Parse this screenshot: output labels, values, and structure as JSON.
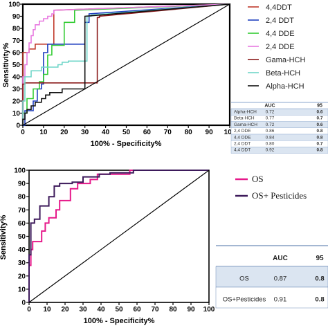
{
  "chart_data": [
    {
      "type": "line",
      "title": "",
      "xlabel": "100% - Specificity%",
      "ylabel": "Sensitivity%",
      "xlim": [
        0,
        100
      ],
      "ylim": [
        0,
        100
      ],
      "x_ticks": [
        0,
        10,
        20,
        30,
        40,
        50,
        60,
        70,
        80,
        90,
        100
      ],
      "y_ticks": [
        0,
        10,
        20,
        30,
        40,
        50,
        60,
        70,
        80,
        90,
        100
      ],
      "grid": false,
      "legend_position": "right",
      "series": [
        {
          "name": "4,4DDT",
          "color": "#c0392b",
          "points": [
            [
              0,
              0
            ],
            [
              0,
              60
            ],
            [
              3,
              60
            ],
            [
              3,
              63
            ],
            [
              6,
              63
            ],
            [
              6,
              67
            ],
            [
              15,
              67
            ],
            [
              15,
              95
            ],
            [
              100,
              100
            ]
          ]
        },
        {
          "name": "2,4 DDT",
          "color": "#1f3fbf",
          "points": [
            [
              0,
              0
            ],
            [
              1,
              0
            ],
            [
              1,
              12
            ],
            [
              5,
              12
            ],
            [
              5,
              20
            ],
            [
              7,
              20
            ],
            [
              7,
              30
            ],
            [
              9,
              30
            ],
            [
              9,
              34
            ],
            [
              10,
              34
            ],
            [
              10,
              60
            ],
            [
              12,
              60
            ],
            [
              12,
              67
            ],
            [
              30,
              67
            ],
            [
              30,
              85
            ],
            [
              32,
              85
            ],
            [
              32,
              92
            ],
            [
              100,
              100
            ]
          ]
        },
        {
          "name": "4,4 DDE",
          "color": "#33cc33",
          "points": [
            [
              0,
              0
            ],
            [
              0,
              10
            ],
            [
              2,
              10
            ],
            [
              2,
              22
            ],
            [
              5,
              22
            ],
            [
              5,
              30
            ],
            [
              8,
              30
            ],
            [
              8,
              36
            ],
            [
              10,
              36
            ],
            [
              10,
              42
            ],
            [
              12,
              42
            ],
            [
              12,
              58
            ],
            [
              14,
              58
            ],
            [
              14,
              66
            ],
            [
              20,
              66
            ],
            [
              20,
              85
            ],
            [
              25,
              85
            ],
            [
              25,
              95
            ],
            [
              100,
              100
            ]
          ]
        },
        {
          "name": "2,4 DDE",
          "color": "#e879e0",
          "points": [
            [
              0,
              0
            ],
            [
              0,
              40
            ],
            [
              1,
              40
            ],
            [
              1,
              50
            ],
            [
              2,
              50
            ],
            [
              2,
              60
            ],
            [
              3,
              60
            ],
            [
              3,
              68
            ],
            [
              4,
              68
            ],
            [
              4,
              74
            ],
            [
              5,
              74
            ],
            [
              5,
              79
            ],
            [
              6,
              79
            ],
            [
              6,
              83
            ],
            [
              8,
              83
            ],
            [
              8,
              86
            ],
            [
              10,
              86
            ],
            [
              10,
              88
            ],
            [
              12,
              88
            ],
            [
              12,
              90
            ],
            [
              14,
              90
            ],
            [
              14,
              92
            ],
            [
              15,
              92
            ],
            [
              15,
              95
            ],
            [
              100,
              100
            ]
          ]
        },
        {
          "name": "Gama-HCH",
          "color": "#8b1a1a",
          "points": [
            [
              0,
              0
            ],
            [
              0,
              34
            ],
            [
              1,
              34
            ],
            [
              1,
              35
            ],
            [
              36,
              35
            ],
            [
              36,
              89
            ],
            [
              37,
              89
            ],
            [
              37,
              90
            ],
            [
              100,
              100
            ]
          ]
        },
        {
          "name": "Beta-HCH",
          "color": "#6fd6c8",
          "points": [
            [
              0,
              0
            ],
            [
              0,
              20
            ],
            [
              1,
              20
            ],
            [
              1,
              40
            ],
            [
              4,
              40
            ],
            [
              4,
              45
            ],
            [
              9,
              45
            ],
            [
              9,
              48
            ],
            [
              17,
              48
            ],
            [
              17,
              50
            ],
            [
              19,
              50
            ],
            [
              19,
              52
            ],
            [
              22,
              52
            ],
            [
              22,
              53
            ],
            [
              31,
              53
            ],
            [
              31,
              90
            ],
            [
              33,
              90
            ],
            [
              33,
              91
            ],
            [
              100,
              100
            ]
          ]
        },
        {
          "name": "Alpha-HCH",
          "color": "#111111",
          "points": [
            [
              0,
              0
            ],
            [
              0,
              5
            ],
            [
              1,
              5
            ],
            [
              1,
              10
            ],
            [
              2,
              10
            ],
            [
              2,
              13
            ],
            [
              4,
              13
            ],
            [
              4,
              16
            ],
            [
              6,
              16
            ],
            [
              6,
              19
            ],
            [
              9,
              19
            ],
            [
              9,
              22
            ],
            [
              11,
              22
            ],
            [
              11,
              25
            ],
            [
              13,
              25
            ],
            [
              13,
              27
            ],
            [
              19,
              27
            ],
            [
              19,
              30
            ],
            [
              30,
              30
            ],
            [
              30,
              90
            ],
            [
              100,
              100
            ]
          ]
        },
        {
          "name": "",
          "color": "#000000",
          "points": [
            [
              0,
              0
            ],
            [
              100,
              100
            ]
          ]
        }
      ],
      "table": {
        "columns": [
          "",
          "AUC",
          "95"
        ],
        "rows": [
          [
            "Alpha-HCH",
            "0.72",
            "0.6"
          ],
          [
            "Beta-HCH",
            "0.77",
            "0.7"
          ],
          [
            "Gama-HCH",
            "0.72",
            "0.6"
          ],
          [
            "2,4 DDE",
            "0.86",
            "0.8"
          ],
          [
            "4,4 DDE",
            "0.84",
            "0.8"
          ],
          [
            "2,4 DDT",
            "0.80",
            "0.7"
          ],
          [
            "4,4 DDT",
            "0.92",
            "0.8"
          ]
        ]
      }
    },
    {
      "type": "line",
      "title": "",
      "xlabel": "100% - Specificity%",
      "ylabel": "Sensitivity%",
      "xlim": [
        0,
        100
      ],
      "ylim": [
        0,
        100
      ],
      "x_ticks": [
        0,
        10,
        20,
        30,
        40,
        50,
        60,
        70,
        80,
        90,
        100
      ],
      "y_ticks": [
        0,
        10,
        20,
        30,
        40,
        50,
        60,
        70,
        80,
        90,
        100
      ],
      "grid": false,
      "legend_position": "right",
      "series": [
        {
          "name": "OS",
          "color": "#e6198a",
          "points": [
            [
              0,
              0
            ],
            [
              0,
              28
            ],
            [
              1,
              28
            ],
            [
              1,
              40
            ],
            [
              2,
              40
            ],
            [
              2,
              46
            ],
            [
              7,
              46
            ],
            [
              7,
              54
            ],
            [
              9,
              54
            ],
            [
              9,
              60
            ],
            [
              11,
              60
            ],
            [
              11,
              64
            ],
            [
              15,
              64
            ],
            [
              15,
              70
            ],
            [
              17,
              70
            ],
            [
              17,
              77
            ],
            [
              23,
              77
            ],
            [
              23,
              86
            ],
            [
              27,
              86
            ],
            [
              27,
              90
            ],
            [
              34,
              90
            ],
            [
              34,
              93
            ],
            [
              38,
              93
            ],
            [
              38,
              97
            ],
            [
              56,
              97
            ],
            [
              56,
              100
            ],
            [
              100,
              100
            ]
          ]
        },
        {
          "name": "OS+ Pesticides",
          "color": "#3d1a5b",
          "points": [
            [
              0,
              0
            ],
            [
              0,
              36
            ],
            [
              1,
              36
            ],
            [
              1,
              60
            ],
            [
              3,
              60
            ],
            [
              3,
              63
            ],
            [
              6,
              63
            ],
            [
              6,
              73
            ],
            [
              11,
              73
            ],
            [
              11,
              80
            ],
            [
              14,
              80
            ],
            [
              14,
              88
            ],
            [
              17,
              88
            ],
            [
              17,
              90
            ],
            [
              24,
              90
            ],
            [
              24,
              91
            ],
            [
              30,
              91
            ],
            [
              30,
              95
            ],
            [
              39,
              95
            ],
            [
              39,
              97
            ],
            [
              45,
              97
            ],
            [
              45,
              98
            ],
            [
              58,
              98
            ],
            [
              58,
              100
            ],
            [
              100,
              100
            ]
          ]
        },
        {
          "name": "",
          "color": "#000000",
          "points": [
            [
              0,
              0
            ],
            [
              100,
              100
            ]
          ]
        }
      ],
      "table": {
        "columns": [
          "",
          "AUC",
          "95"
        ],
        "rows": [
          [
            "OS",
            "0.87",
            "0.8"
          ],
          [
            "OS+Pesticides",
            "0.91",
            "0.8"
          ]
        ]
      }
    }
  ]
}
